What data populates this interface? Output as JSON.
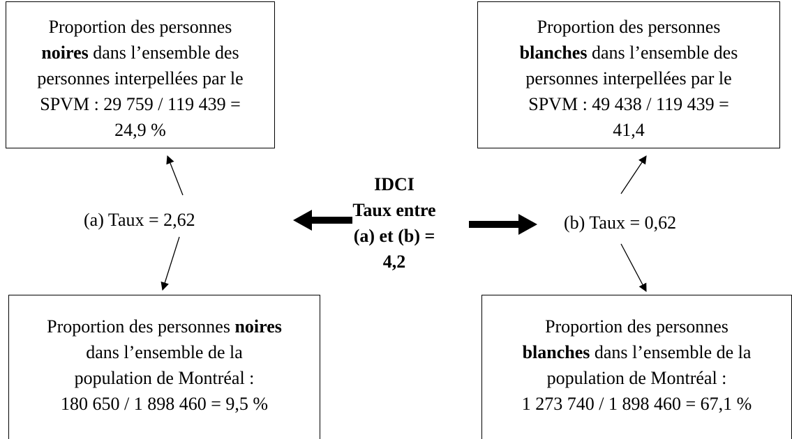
{
  "boxes": [
    {
      "lines": [
        [
          "Proportion des personnes"
        ],
        [
          "noires",
          " dans l’ensemble des"
        ],
        [
          "personnes interpellées par le"
        ],
        [
          "SPVM : 29 759 / 119 439 ="
        ],
        [
          "24,9 %"
        ]
      ]
    },
    {
      "lines": [
        [
          "Proportion des personnes"
        ],
        [
          "blanches",
          " dans l’ensemble des"
        ],
        [
          "personnes interpellées par le"
        ],
        [
          "SPVM : 49 438 / 119 439 ="
        ],
        [
          "41,4"
        ]
      ]
    },
    {
      "lines": [
        [
          "Proportion des personnes ",
          "noires"
        ],
        [
          "dans l’ensemble de la"
        ],
        [
          "population de Montréal :"
        ],
        [
          "180 650 / 1 898 460 = 9,5 %"
        ]
      ]
    },
    {
      "lines": [
        [
          "Proportion des personnes"
        ],
        [
          "blanches",
          " dans l’ensemble de la"
        ],
        [
          "population de Montréal :"
        ],
        [
          "1 273 740 / 1 898 460 = 67,1 %"
        ]
      ]
    }
  ],
  "rate_a": "(a) Taux = 2,62",
  "rate_b": "(b) Taux = 0,62",
  "center": [
    "IDCI",
    "Taux entre",
    "(a) et (b) =",
    "4,2"
  ]
}
